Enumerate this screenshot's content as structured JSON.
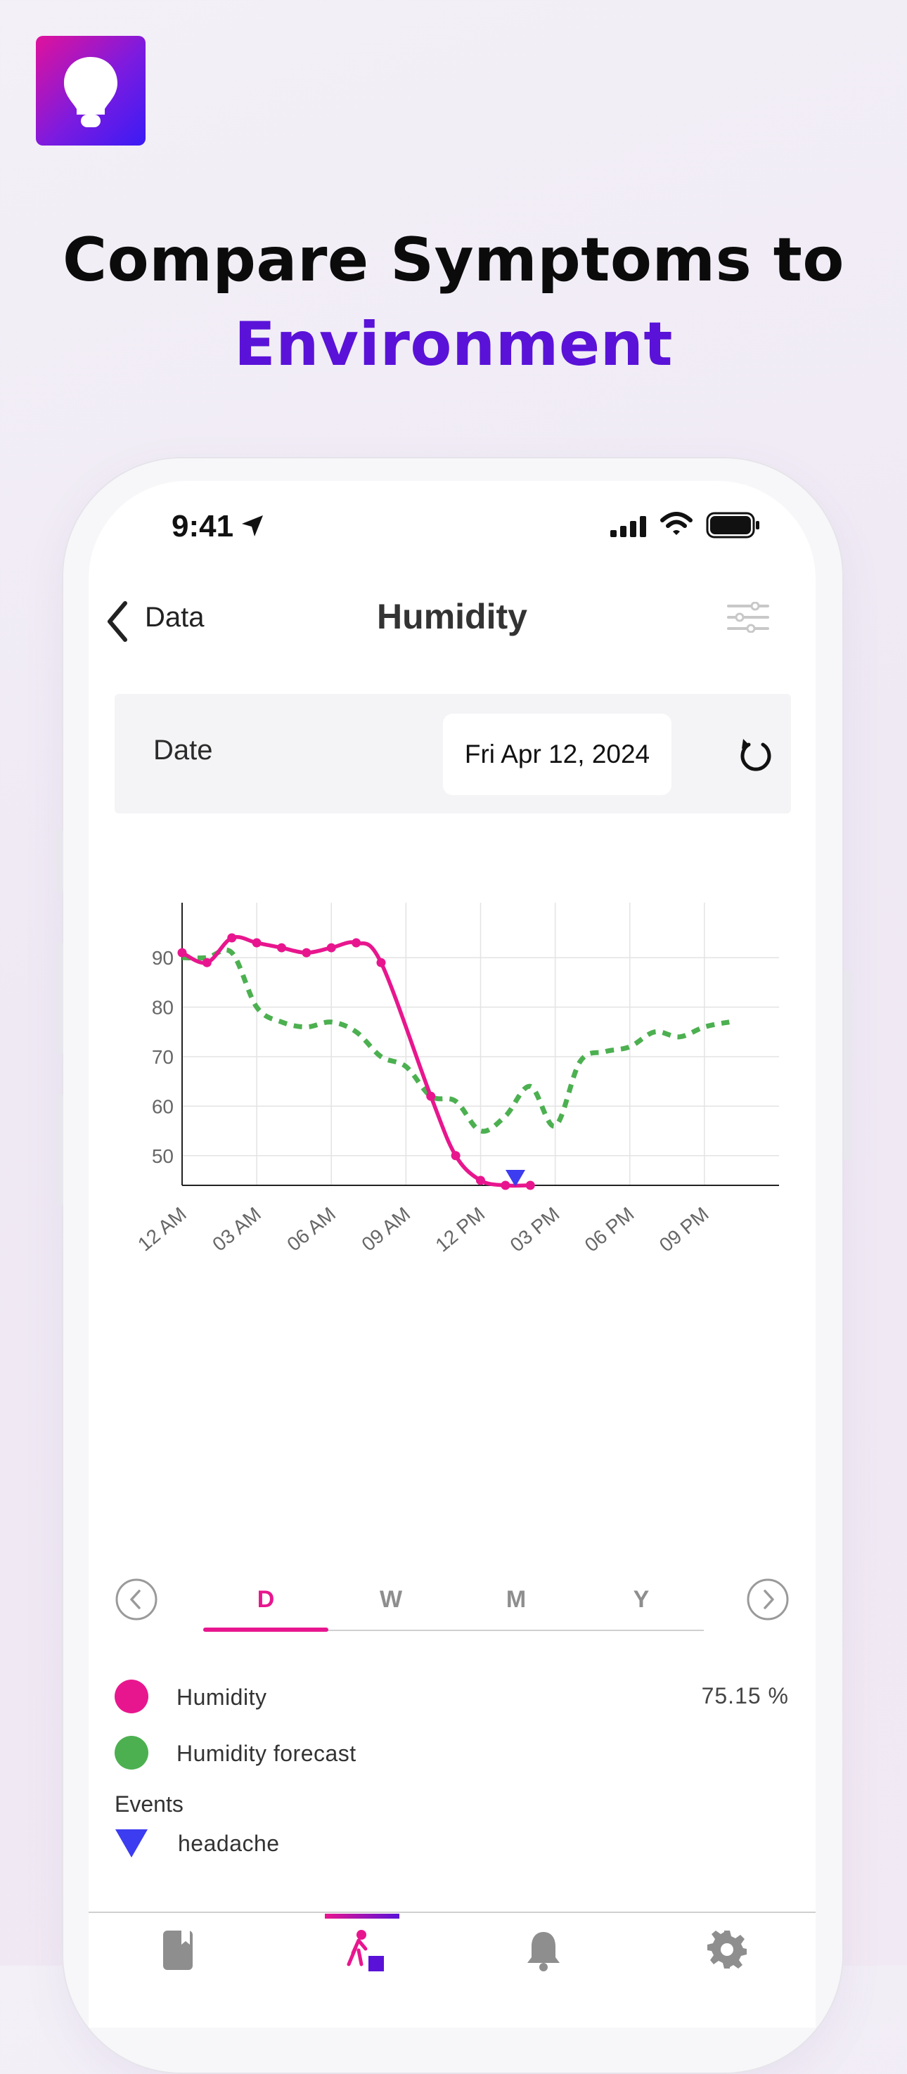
{
  "headline": {
    "line1": "Compare Symptoms to",
    "line2": "Environment"
  },
  "status_bar": {
    "time": "9:41"
  },
  "nav": {
    "back_label": "Data",
    "title": "Humidity"
  },
  "date_picker": {
    "label": "Date",
    "value": "Fri Apr 12, 2024"
  },
  "range_tabs": [
    {
      "label": "D",
      "active": true
    },
    {
      "label": "W",
      "active": false
    },
    {
      "label": "M",
      "active": false
    },
    {
      "label": "Y",
      "active": false
    }
  ],
  "legend": {
    "humidity": {
      "label": "Humidity",
      "value": "75.15 %",
      "color": "#e8168e"
    },
    "forecast": {
      "label": "Humidity forecast",
      "color": "#4cb050"
    },
    "events_title": "Events",
    "event": {
      "label": "headache",
      "color": "#3c3cf0"
    }
  },
  "colors": {
    "accent": "#e8168e",
    "brand_purple": "#5a12d8"
  },
  "chart_data": {
    "type": "line",
    "ylim": [
      44,
      94
    ],
    "y_ticks": [
      "90",
      "80",
      "70",
      "60",
      "50"
    ],
    "y_tick_values": [
      90,
      80,
      70,
      60,
      50
    ],
    "xlim": [
      0,
      24
    ],
    "x_ticks": [
      "12 AM",
      "03 AM",
      "06 AM",
      "09 AM",
      "12 PM",
      "03 PM",
      "06 PM",
      "09 PM"
    ],
    "x_tick_values": [
      0,
      3,
      6,
      9,
      12,
      15,
      18,
      21
    ],
    "grid": true,
    "series": [
      {
        "name": "Humidity",
        "color": "#e8168e",
        "style": "solid",
        "markers": true,
        "points": [
          [
            0,
            91
          ],
          [
            1,
            89
          ],
          [
            2,
            94
          ],
          [
            3,
            93
          ],
          [
            4,
            92
          ],
          [
            5,
            91
          ],
          [
            6,
            92
          ],
          [
            7,
            93
          ],
          [
            8,
            89
          ],
          [
            10,
            62
          ],
          [
            11,
            50
          ],
          [
            12,
            45
          ],
          [
            13,
            44
          ],
          [
            14,
            44
          ]
        ]
      },
      {
        "name": "Humidity forecast",
        "color": "#4cb050",
        "style": "dashed",
        "markers": false,
        "points": [
          [
            0,
            90
          ],
          [
            1,
            90
          ],
          [
            2,
            91
          ],
          [
            3,
            80
          ],
          [
            4,
            77
          ],
          [
            5,
            76
          ],
          [
            6,
            77
          ],
          [
            7,
            75
          ],
          [
            8,
            70
          ],
          [
            9,
            68
          ],
          [
            10,
            62
          ],
          [
            11,
            61
          ],
          [
            12,
            55
          ],
          [
            13,
            58
          ],
          [
            14,
            64
          ],
          [
            15,
            56
          ],
          [
            16,
            69
          ],
          [
            17,
            71
          ],
          [
            18,
            72
          ],
          [
            19,
            75
          ],
          [
            20,
            74
          ],
          [
            21,
            76
          ],
          [
            22,
            77
          ]
        ]
      }
    ],
    "events": [
      {
        "name": "headache",
        "x": 13.4,
        "y": 44
      }
    ]
  }
}
